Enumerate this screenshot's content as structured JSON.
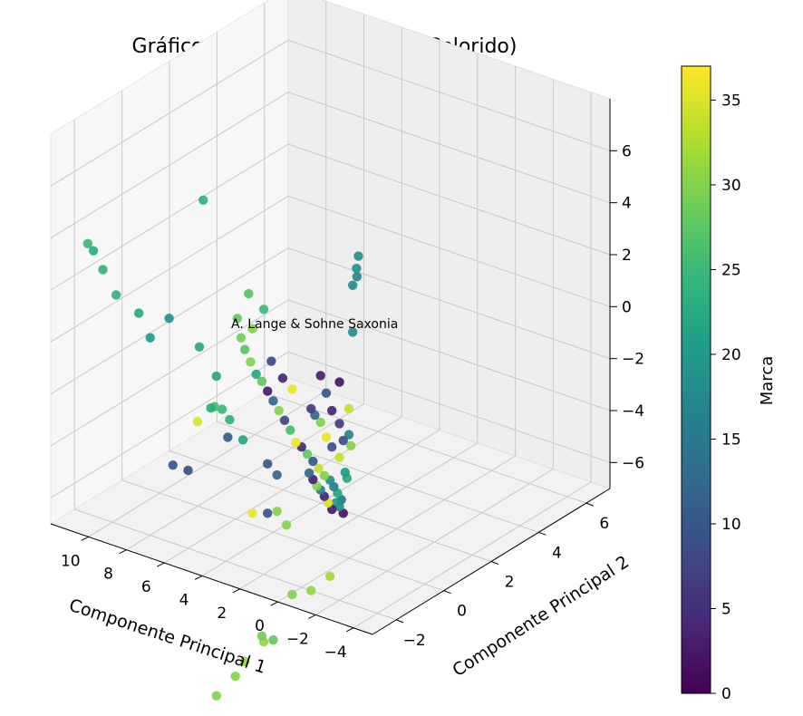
{
  "chart_data": {
    "type": "scatter",
    "projection": "3d",
    "title": "Gráfico de Dispersão em 3D (Colorido)",
    "xlabel": "Componente Principal 1",
    "ylabel": "Componente Principal 2",
    "zlabel": "",
    "xlim": [
      -5,
      12
    ],
    "ylim": [
      -3,
      7
    ],
    "zlim": [
      -7,
      8
    ],
    "xticks": [
      -4,
      -2,
      0,
      2,
      4,
      6,
      8,
      10
    ],
    "yticks": [
      -2,
      0,
      2,
      4,
      6
    ],
    "zticks": [
      -6,
      -4,
      -2,
      0,
      2,
      4,
      6
    ],
    "grid": true,
    "colormap": "viridis",
    "colorbar": {
      "label": "Marca",
      "min": 0,
      "max": 37,
      "ticks": [
        0,
        5,
        10,
        15,
        20,
        25,
        30,
        35
      ]
    },
    "annotation": {
      "text": "A. Lange & Sohne Saxonia",
      "x": -1.8,
      "y": -1.5,
      "z": 2.5,
      "color": "#ff0000"
    },
    "points": [
      [
        -3.0,
        -2.0,
        6.5,
        19
      ],
      [
        -2.9,
        -2.0,
        6.0,
        19
      ],
      [
        -2.8,
        -1.9,
        5.6,
        17
      ],
      [
        -2.7,
        -2.0,
        5.3,
        18
      ],
      [
        -2.7,
        -2.0,
        3.5,
        18
      ],
      [
        -2.5,
        -2.0,
        0.5,
        34
      ],
      [
        -2.4,
        -2.0,
        -2.2,
        22
      ],
      [
        -2.3,
        -2.0,
        -2.0,
        20
      ],
      [
        -2.0,
        -2.0,
        -1.5,
        34
      ],
      [
        -2.6,
        -2.0,
        -0.9,
        30
      ],
      [
        -2.5,
        -2.0,
        -0.5,
        17
      ],
      [
        -2.2,
        -2.0,
        -0.8,
        8
      ],
      [
        -2.0,
        -2.0,
        -0.2,
        6
      ],
      [
        -1.6,
        -2.0,
        0.2,
        4
      ],
      [
        -1.3,
        -2.0,
        0.8,
        10
      ],
      [
        -1.0,
        -2.0,
        1.4,
        3
      ],
      [
        -2.0,
        -2.0,
        1.4,
        2
      ],
      [
        -1.6,
        -2.0,
        -1.2,
        9
      ],
      [
        -1.3,
        -2.0,
        -0.9,
        36
      ],
      [
        -1.0,
        -2.0,
        -0.4,
        30
      ],
      [
        -0.7,
        -2.0,
        -0.2,
        12
      ],
      [
        -0.5,
        -2.0,
        0.0,
        6
      ],
      [
        -2.2,
        -2.0,
        -3.6,
        2
      ],
      [
        -2.0,
        -2.0,
        -3.4,
        18
      ],
      [
        -1.8,
        -2.0,
        -3.3,
        20
      ],
      [
        -1.6,
        -2.0,
        -3.6,
        3
      ],
      [
        -1.4,
        -2.0,
        -3.4,
        35
      ],
      [
        -1.2,
        -2.0,
        -3.2,
        4
      ],
      [
        -1.0,
        -2.0,
        -3.0,
        16
      ],
      [
        -0.8,
        -2.0,
        -2.9,
        30
      ],
      [
        -0.6,
        -2.0,
        -2.7,
        3
      ],
      [
        -0.4,
        -2.0,
        -2.5,
        12
      ],
      [
        -2.1,
        -2.0,
        -3.1,
        14
      ],
      [
        -1.9,
        -2.0,
        -2.9,
        22
      ],
      [
        -1.7,
        -2.0,
        -2.7,
        16
      ],
      [
        -1.5,
        -2.0,
        -2.5,
        18
      ],
      [
        -1.2,
        -2.0,
        -2.4,
        30
      ],
      [
        -0.9,
        -2.0,
        -2.2,
        34
      ],
      [
        -0.6,
        -2.0,
        -2.0,
        10
      ],
      [
        -0.3,
        -2.0,
        -1.8,
        28
      ],
      [
        0.0,
        -2.0,
        -1.6,
        4
      ],
      [
        0.3,
        -2.0,
        -1.5,
        36
      ],
      [
        0.6,
        -2.0,
        -1.1,
        26
      ],
      [
        0.9,
        -2.0,
        -0.8,
        8
      ],
      [
        1.2,
        -2.0,
        -0.5,
        30
      ],
      [
        1.5,
        -2.0,
        -0.2,
        12
      ],
      [
        1.8,
        -2.0,
        0.1,
        3
      ],
      [
        2.1,
        -2.0,
        0.4,
        28
      ],
      [
        2.4,
        -2.0,
        0.6,
        22
      ],
      [
        2.7,
        -2.0,
        1.0,
        30
      ],
      [
        3.0,
        -2.0,
        1.4,
        27
      ],
      [
        3.2,
        -2.0,
        1.8,
        29
      ],
      [
        3.4,
        -2.0,
        2.5,
        28
      ],
      [
        2.6,
        -2.0,
        2.3,
        30
      ],
      [
        1.6,
        -2.0,
        1.3,
        8
      ],
      [
        1.0,
        -2.0,
        0.8,
        4
      ],
      [
        0.5,
        -2.0,
        0.5,
        36
      ],
      [
        2.0,
        -2.0,
        3.2,
        25
      ],
      [
        2.8,
        -2.0,
        3.6,
        27
      ],
      [
        1.3,
        -2.0,
        -3.0,
        12
      ],
      [
        1.8,
        -2.0,
        -2.7,
        10
      ],
      [
        0.8,
        -2.0,
        -4.8,
        30
      ],
      [
        1.3,
        -2.0,
        -4.4,
        30
      ],
      [
        1.8,
        -2.0,
        -4.6,
        10
      ],
      [
        2.6,
        -2.0,
        -4.8,
        36
      ],
      [
        3.1,
        -2.0,
        -2.1,
        22
      ],
      [
        3.9,
        -2.0,
        -2.2,
        11
      ],
      [
        4.2,
        -2.0,
        -1.2,
        25
      ],
      [
        5.5,
        -2.0,
        -2.0,
        35
      ],
      [
        6.0,
        -2.0,
        -4.0,
        9
      ],
      [
        4.5,
        -2.0,
        0.0,
        22
      ],
      [
        5.4,
        -2.0,
        0.9,
        22
      ],
      [
        6.8,
        -2.0,
        -4.0,
        10
      ],
      [
        8.0,
        -2.0,
        0.6,
        20
      ],
      [
        8.6,
        -2.0,
        1.4,
        22
      ],
      [
        10.5,
        -2.0,
        2.6,
        24
      ],
      [
        11.0,
        -2.0,
        3.2,
        23
      ],
      [
        11.3,
        -2.0,
        3.4,
        25
      ],
      [
        5.2,
        -2.0,
        6.6,
        24
      ],
      [
        7.0,
        -2.0,
        1.6,
        19
      ],
      [
        9.8,
        -2.0,
        1.8,
        24
      ],
      [
        3.8,
        -2.0,
        -1.5,
        24
      ],
      [
        4.8,
        -2.0,
        -1.3,
        23
      ],
      [
        4.6,
        -2.0,
        -1.2,
        26
      ],
      [
        -0.5,
        -2.0,
        -7.0,
        31
      ],
      [
        0.5,
        -2.0,
        -7.4,
        30
      ],
      [
        1.5,
        -2.0,
        -9.4,
        28
      ],
      [
        2.0,
        -2.0,
        -9.6,
        31
      ],
      [
        3.5,
        -2.0,
        -11.3,
        30
      ],
      [
        3.0,
        -2.0,
        -10.6,
        31
      ],
      [
        4.5,
        -2.0,
        -12.3,
        30
      ],
      [
        2.1,
        -2.0,
        -9.4,
        29
      ],
      [
        -1.5,
        -2.0,
        -6.2,
        32
      ]
    ]
  }
}
